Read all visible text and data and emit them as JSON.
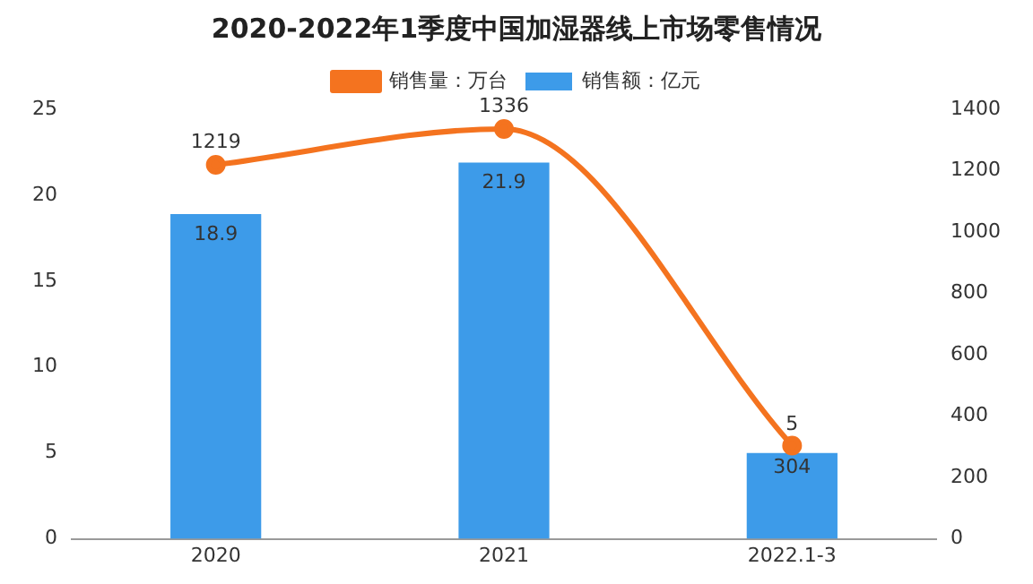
{
  "chart_data": {
    "type": "bar",
    "title": "2020-2022年1季度中国加湿器线上市场零售情况",
    "categories": [
      "2020",
      "2021",
      "2022.1-3"
    ],
    "series": [
      {
        "name": "销售额：亿元",
        "color": "#3d9be9",
        "values": [
          18.9,
          21.9,
          5
        ]
      },
      {
        "name": "销售量：万台",
        "type": "line",
        "axis": "y2",
        "color": "#f4731f",
        "values": [
          1219,
          1336,
          304
        ]
      }
    ],
    "ylim": [
      0,
      25
    ],
    "yticks": [
      0,
      5,
      10,
      15,
      20,
      25
    ],
    "y2lim": [
      0,
      1400
    ],
    "y2ticks": [
      0,
      200,
      400,
      600,
      800,
      1000,
      1200,
      1400
    ],
    "legend": "top",
    "data_labels": true,
    "marker": "circle",
    "grid": false
  }
}
